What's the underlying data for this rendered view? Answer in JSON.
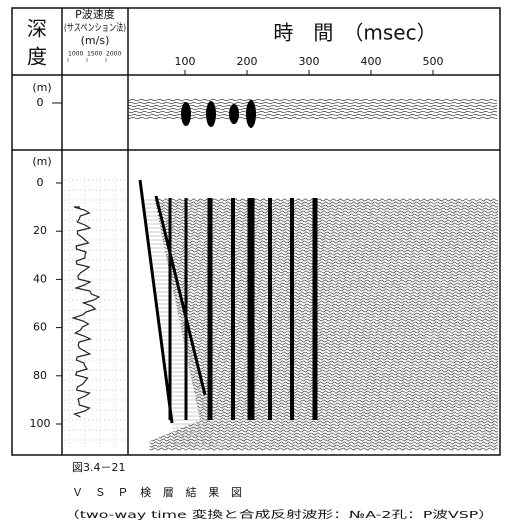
{
  "header": {
    "depth_top": "深",
    "depth_bottom": "度",
    "velocity_title": "P波速度",
    "velocity_method": "(サスペンション法)",
    "velocity_unit": "(m/s)",
    "time_title": "時　間　（msec）"
  },
  "velocity_ticks": [
    1000,
    1500,
    2000
  ],
  "time_ticks": [
    100,
    200,
    300,
    400,
    500
  ],
  "top_panel": {
    "unit": "(m)",
    "depth_ticks": [
      0
    ]
  },
  "main_panel": {
    "unit": "(m)",
    "depth_ticks": [
      0,
      20,
      40,
      60,
      80,
      100
    ]
  },
  "caption": {
    "number": "図3.4－21",
    "title": "ＶＳＰ検層結果図",
    "subtitle": "（two-way time 変換と合成反射波形：№A-2孔：P波VSP）"
  }
}
